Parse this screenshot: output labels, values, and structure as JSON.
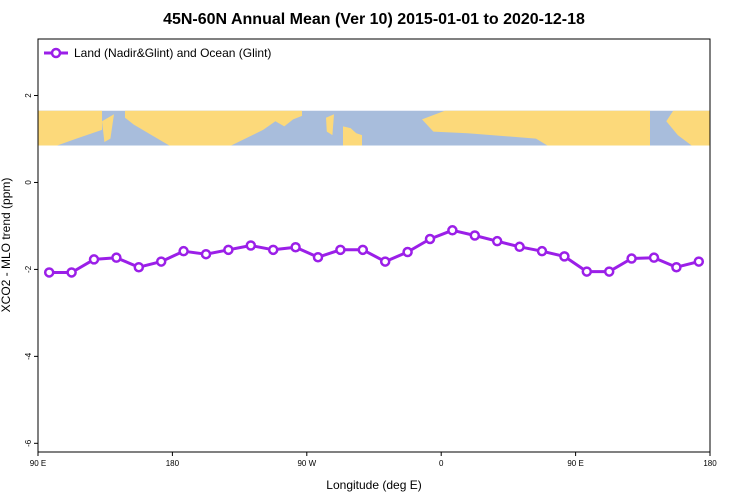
{
  "chart_data": {
    "type": "line",
    "title": "45N-60N Annual Mean (Ver 10)   2015-01-01 to 2020-12-18",
    "xlabel": "Longitude (deg E)",
    "ylabel": "XCO2 - MLO trend (ppm)",
    "xlim": [
      90,
      450
    ],
    "ylim": [
      -6.2,
      3.3
    ],
    "x_ticks": [
      {
        "value": 90,
        "label": "90 E"
      },
      {
        "value": 162,
        "label": "180"
      },
      {
        "value": 234,
        "label": "90 W"
      },
      {
        "value": 306,
        "label": "0"
      },
      {
        "value": 378,
        "label": "90 E"
      },
      {
        "value": 450,
        "label": "180"
      }
    ],
    "y_ticks": [
      {
        "value": 2,
        "label": "2"
      },
      {
        "value": 0,
        "label": "0"
      },
      {
        "value": -2,
        "label": "-2"
      },
      {
        "value": -4,
        "label": "-4"
      },
      {
        "value": -6,
        "label": "-6"
      }
    ],
    "legend": {
      "position": "top-left"
    },
    "map_strip": {
      "y_top": 1.65,
      "y_bottom": 0.85,
      "ocean_color": "#a8bddc",
      "land_color": "#fcd97a"
    },
    "series": [
      {
        "name": "Land (Nadir&Glint) and Ocean (Glint)",
        "color": "#9b1fe8",
        "x": [
          96,
          108,
          120,
          132,
          144,
          156,
          168,
          180,
          192,
          204,
          216,
          228,
          240,
          252,
          264,
          276,
          288,
          300,
          312,
          324,
          336,
          348,
          360,
          372,
          384,
          396,
          408,
          420,
          432,
          444
        ],
        "y": [
          -2.07,
          -2.07,
          -1.77,
          -1.73,
          -1.95,
          -1.82,
          -1.58,
          -1.65,
          -1.55,
          -1.45,
          -1.55,
          -1.49,
          -1.72,
          -1.55,
          -1.55,
          -1.82,
          -1.6,
          -1.3,
          -1.1,
          -1.22,
          -1.35,
          -1.48,
          -1.58,
          -1.7,
          -2.05,
          -2.05,
          -1.75,
          -1.73,
          -1.95,
          -1.82
        ]
      }
    ]
  }
}
